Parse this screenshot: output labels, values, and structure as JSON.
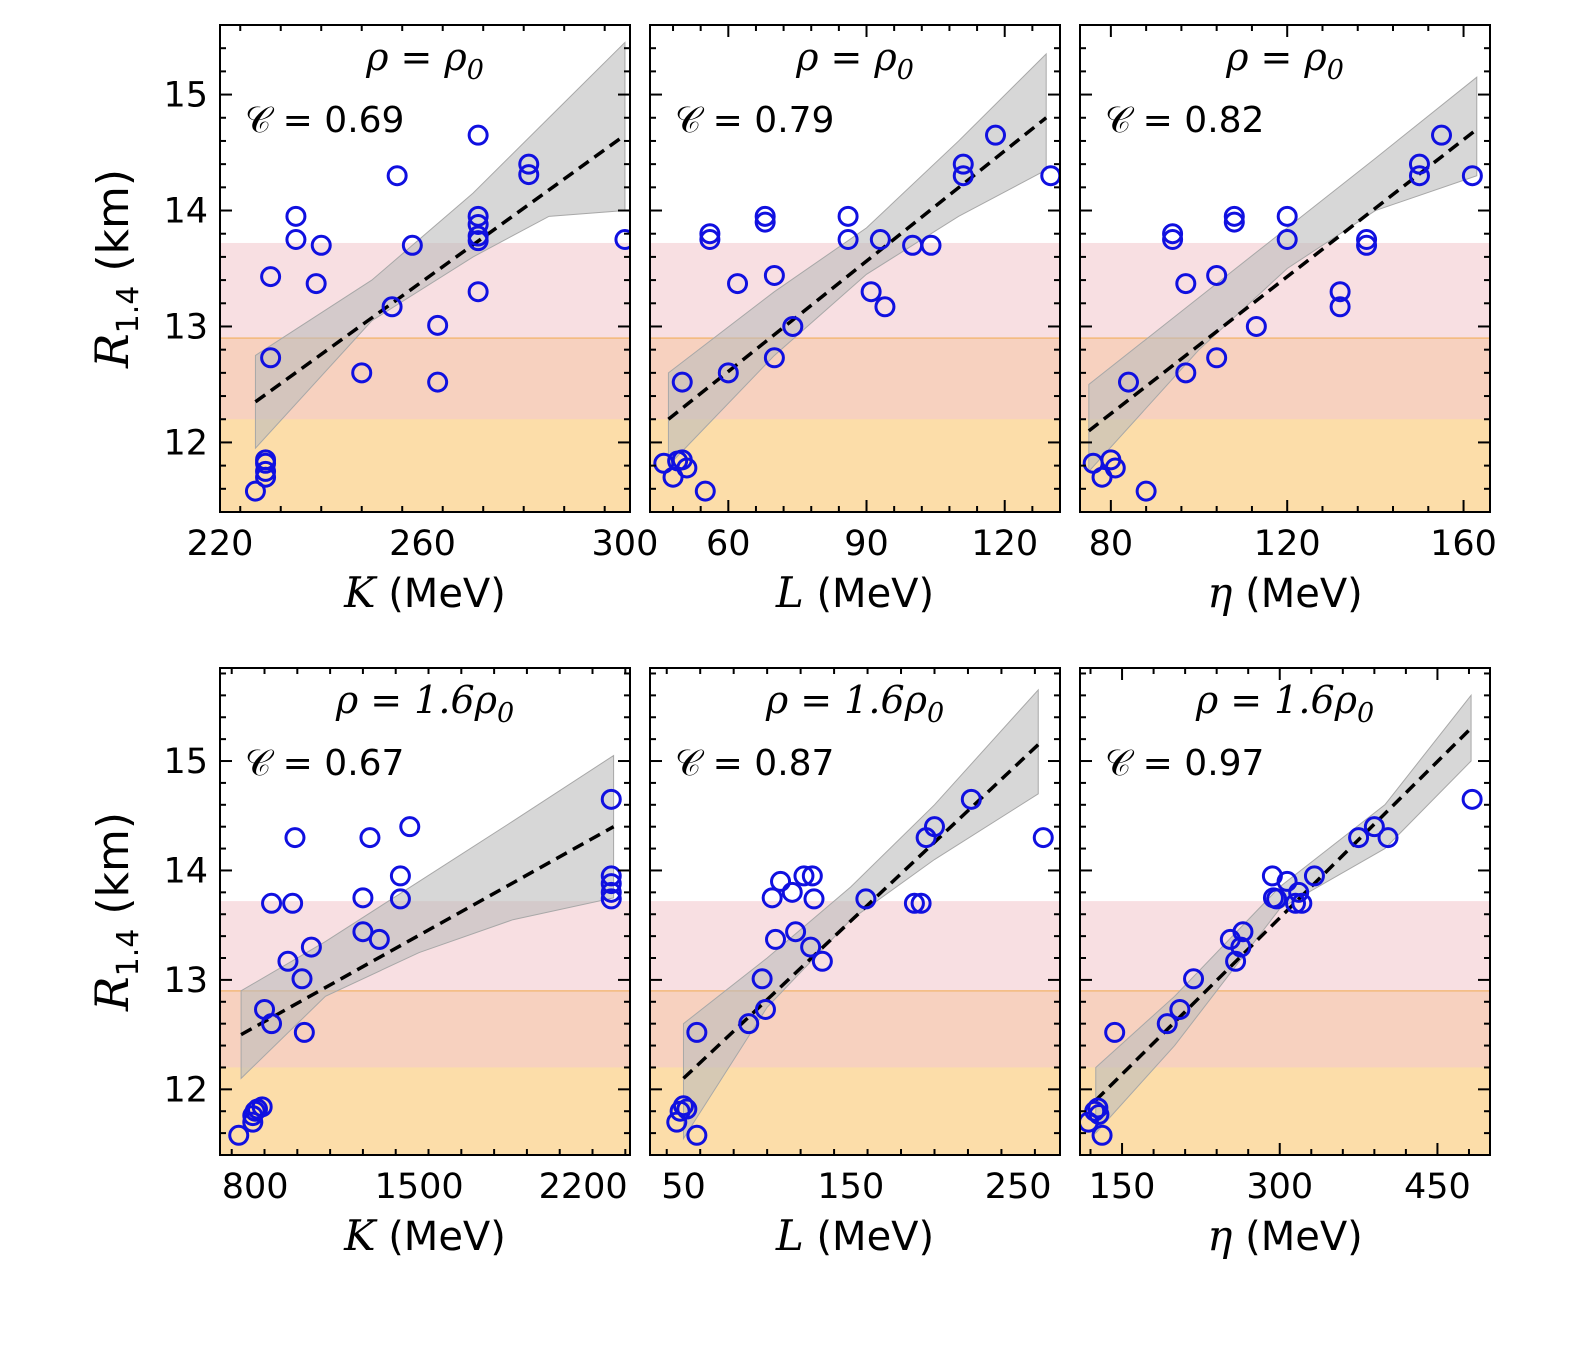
{
  "figure": {
    "row_ylabel": "(km)",
    "row_ylabel_symbol": "R",
    "row_ylabel_sub": "1.4",
    "colors": {
      "points": "#1010e0",
      "fit_line": "#000000",
      "band_gray": "#bdbdbd",
      "band_pink": "#f4c9cf",
      "band_orange": "#fbd79a"
    }
  },
  "chart_data": [
    {
      "type": "scatter",
      "panel": "top-left",
      "density_label": "ρ = ρ0",
      "corr_label": "𝒞 = 0.69",
      "xlabel_var": "K",
      "xlabel_unit": "(MeV)",
      "xlim": [
        220,
        301
      ],
      "ylim": [
        11.4,
        15.6
      ],
      "xticks": [
        220,
        260,
        300
      ],
      "yticks": [
        12,
        13,
        14,
        15
      ],
      "show_ytick_labels": true,
      "points": [
        [
          229,
          11.85
        ],
        [
          229,
          11.82
        ],
        [
          229,
          11.75
        ],
        [
          229,
          11.7
        ],
        [
          227,
          11.58
        ],
        [
          230,
          12.73
        ],
        [
          230,
          13.43
        ],
        [
          235,
          13.95
        ],
        [
          235,
          13.75
        ],
        [
          239,
          13.37
        ],
        [
          240,
          13.7
        ],
        [
          248,
          12.6
        ],
        [
          254,
          13.17
        ],
        [
          255,
          14.3
        ],
        [
          258,
          13.7
        ],
        [
          263,
          13.01
        ],
        [
          263,
          12.52
        ],
        [
          271,
          14.65
        ],
        [
          271,
          13.95
        ],
        [
          271,
          13.88
        ],
        [
          271,
          13.78
        ],
        [
          271,
          13.74
        ],
        [
          271,
          13.3
        ],
        [
          281,
          14.4
        ],
        [
          281,
          14.31
        ],
        [
          300,
          13.75
        ]
      ],
      "fit": {
        "x": [
          227,
          300
        ],
        "y": [
          12.35,
          14.65
        ]
      },
      "band_upper": [
        [
          227,
          12.75
        ],
        [
          250,
          13.4
        ],
        [
          270,
          14.15
        ],
        [
          285,
          14.8
        ],
        [
          300,
          15.45
        ]
      ],
      "band_lower": [
        [
          227,
          11.95
        ],
        [
          250,
          13.05
        ],
        [
          270,
          13.6
        ],
        [
          285,
          13.95
        ],
        [
          300,
          14.0
        ]
      ],
      "pink_band": [
        12.2,
        13.72
      ],
      "orange_band": [
        11.4,
        12.9
      ]
    },
    {
      "type": "scatter",
      "panel": "top-middle",
      "density_label": "ρ = ρ0",
      "corr_label": "𝒞 = 0.79",
      "xlabel_var": "L",
      "xlabel_unit": "(MeV)",
      "xlim": [
        43,
        132
      ],
      "ylim": [
        11.4,
        15.6
      ],
      "xticks": [
        60,
        90,
        120
      ],
      "yticks": [
        12,
        13,
        14,
        15
      ],
      "show_ytick_labels": false,
      "points": [
        [
          46,
          11.82
        ],
        [
          48,
          11.7
        ],
        [
          49,
          11.84
        ],
        [
          50,
          11.85
        ],
        [
          51,
          11.78
        ],
        [
          55,
          11.58
        ],
        [
          50,
          12.52
        ],
        [
          56,
          13.75
        ],
        [
          56,
          13.8
        ],
        [
          60,
          12.6
        ],
        [
          62,
          13.37
        ],
        [
          68,
          13.95
        ],
        [
          68,
          13.9
        ],
        [
          70,
          13.44
        ],
        [
          70,
          12.73
        ],
        [
          74,
          13.0
        ],
        [
          86,
          13.95
        ],
        [
          86,
          13.75
        ],
        [
          91,
          13.3
        ],
        [
          93,
          13.75
        ],
        [
          94,
          13.17
        ],
        [
          100,
          13.7
        ],
        [
          104,
          13.7
        ],
        [
          111,
          14.3
        ],
        [
          111,
          14.4
        ],
        [
          118,
          14.65
        ],
        [
          130,
          14.3
        ]
      ],
      "fit": {
        "x": [
          47,
          129
        ],
        "y": [
          12.2,
          14.8
        ]
      },
      "band_upper": [
        [
          47,
          12.6
        ],
        [
          70,
          13.3
        ],
        [
          90,
          13.85
        ],
        [
          110,
          14.6
        ],
        [
          129,
          15.35
        ]
      ],
      "band_lower": [
        [
          47,
          11.8
        ],
        [
          70,
          12.75
        ],
        [
          90,
          13.45
        ],
        [
          110,
          13.95
        ],
        [
          129,
          14.35
        ]
      ],
      "pink_band": [
        12.2,
        13.72
      ],
      "orange_band": [
        11.4,
        12.9
      ]
    },
    {
      "type": "scatter",
      "panel": "top-right",
      "density_label": "ρ = ρ0",
      "corr_label": "𝒞 = 0.82",
      "xlabel_var": "η",
      "xlabel_unit": "(MeV)",
      "xlim": [
        73,
        166
      ],
      "ylim": [
        11.4,
        15.6
      ],
      "xticks": [
        80,
        120,
        160
      ],
      "yticks": [
        12,
        13,
        14,
        15
      ],
      "show_ytick_labels": false,
      "points": [
        [
          76,
          11.82
        ],
        [
          78,
          11.7
        ],
        [
          80,
          11.85
        ],
        [
          81,
          11.78
        ],
        [
          88,
          11.58
        ],
        [
          84,
          12.52
        ],
        [
          94,
          13.8
        ],
        [
          94,
          13.75
        ],
        [
          97,
          12.6
        ],
        [
          97,
          13.37
        ],
        [
          104,
          12.73
        ],
        [
          104,
          13.44
        ],
        [
          108,
          13.95
        ],
        [
          108,
          13.9
        ],
        [
          113,
          13.0
        ],
        [
          120,
          13.95
        ],
        [
          120,
          13.75
        ],
        [
          132,
          13.3
        ],
        [
          132,
          13.17
        ],
        [
          138,
          13.7
        ],
        [
          138,
          13.75
        ],
        [
          150,
          14.3
        ],
        [
          150,
          14.4
        ],
        [
          155,
          14.65
        ],
        [
          162,
          14.3
        ]
      ],
      "fit": {
        "x": [
          75,
          163
        ],
        "y": [
          12.1,
          14.7
        ]
      },
      "band_upper": [
        [
          75,
          12.5
        ],
        [
          100,
          13.25
        ],
        [
          120,
          13.85
        ],
        [
          140,
          14.45
        ],
        [
          163,
          15.15
        ]
      ],
      "band_lower": [
        [
          75,
          11.75
        ],
        [
          100,
          12.8
        ],
        [
          120,
          13.5
        ],
        [
          140,
          14.0
        ],
        [
          163,
          14.3
        ]
      ],
      "pink_band": [
        12.2,
        13.72
      ],
      "orange_band": [
        11.4,
        12.9
      ]
    },
    {
      "type": "scatter",
      "panel": "bottom-left",
      "density_label": "ρ = 1.6ρ0",
      "corr_label": "𝒞 = 0.67",
      "xlabel_var": "K",
      "xlabel_unit": "(MeV)",
      "xlim": [
        650,
        2400
      ],
      "ylim": [
        11.4,
        15.85
      ],
      "xticks": [
        800,
        1500,
        2200
      ],
      "yticks": [
        12,
        13,
        14,
        15
      ],
      "show_ytick_labels": true,
      "points": [
        [
          730,
          11.58
        ],
        [
          790,
          11.7
        ],
        [
          790,
          11.76
        ],
        [
          800,
          11.8
        ],
        [
          810,
          11.82
        ],
        [
          830,
          11.84
        ],
        [
          840,
          12.73
        ],
        [
          870,
          12.6
        ],
        [
          870,
          13.7
        ],
        [
          940,
          13.17
        ],
        [
          960,
          13.7
        ],
        [
          970,
          14.3
        ],
        [
          1000,
          13.01
        ],
        [
          1010,
          12.52
        ],
        [
          1040,
          13.3
        ],
        [
          1260,
          13.75
        ],
        [
          1260,
          13.44
        ],
        [
          1290,
          14.3
        ],
        [
          1330,
          13.37
        ],
        [
          1420,
          13.95
        ],
        [
          1420,
          13.74
        ],
        [
          1460,
          14.4
        ],
        [
          2320,
          14.65
        ],
        [
          2320,
          13.95
        ],
        [
          2320,
          13.88
        ],
        [
          2320,
          13.8
        ],
        [
          2320,
          13.74
        ]
      ],
      "fit": {
        "x": [
          740,
          2330
        ],
        "y": [
          12.5,
          14.4
        ]
      },
      "band_upper": [
        [
          740,
          12.9
        ],
        [
          1100,
          13.35
        ],
        [
          1500,
          13.9
        ],
        [
          1900,
          14.45
        ],
        [
          2330,
          15.05
        ]
      ],
      "band_lower": [
        [
          740,
          12.1
        ],
        [
          1100,
          12.85
        ],
        [
          1500,
          13.25
        ],
        [
          1900,
          13.55
        ],
        [
          2330,
          13.75
        ]
      ],
      "pink_band": [
        12.2,
        13.72
      ],
      "orange_band": [
        11.4,
        12.9
      ]
    },
    {
      "type": "scatter",
      "panel": "bottom-middle",
      "density_label": "ρ = 1.6ρ0",
      "corr_label": "𝒞 = 0.87",
      "xlabel_var": "L",
      "xlabel_unit": "(MeV)",
      "xlim": [
        30,
        275
      ],
      "ylim": [
        11.4,
        15.85
      ],
      "xticks": [
        50,
        150,
        250
      ],
      "yticks": [
        12,
        13,
        14,
        15
      ],
      "show_ytick_labels": false,
      "points": [
        [
          46,
          11.7
        ],
        [
          48,
          11.8
        ],
        [
          50,
          11.85
        ],
        [
          52,
          11.82
        ],
        [
          58,
          11.58
        ],
        [
          58,
          12.52
        ],
        [
          89,
          12.6
        ],
        [
          97,
          13.01
        ],
        [
          99,
          12.73
        ],
        [
          103,
          13.75
        ],
        [
          105,
          13.37
        ],
        [
          108,
          13.9
        ],
        [
          115,
          13.8
        ],
        [
          117,
          13.44
        ],
        [
          122,
          13.95
        ],
        [
          126,
          13.3
        ],
        [
          127,
          13.95
        ],
        [
          128,
          13.74
        ],
        [
          133,
          13.17
        ],
        [
          159,
          13.74
        ],
        [
          188,
          13.7
        ],
        [
          192,
          13.7
        ],
        [
          195,
          14.3
        ],
        [
          200,
          14.4
        ],
        [
          222,
          14.65
        ],
        [
          265,
          14.3
        ]
      ],
      "fit": {
        "x": [
          50,
          262
        ],
        "y": [
          12.1,
          15.15
        ]
      },
      "band_upper": [
        [
          50,
          12.6
        ],
        [
          100,
          13.2
        ],
        [
          150,
          13.85
        ],
        [
          200,
          14.6
        ],
        [
          262,
          15.65
        ]
      ],
      "band_lower": [
        [
          50,
          11.55
        ],
        [
          100,
          12.75
        ],
        [
          150,
          13.55
        ],
        [
          200,
          14.1
        ],
        [
          262,
          14.7
        ]
      ],
      "pink_band": [
        12.2,
        13.72
      ],
      "orange_band": [
        11.4,
        12.9
      ]
    },
    {
      "type": "scatter",
      "panel": "bottom-right",
      "density_label": "ρ = 1.6ρ0",
      "corr_label": "𝒞 = 0.97",
      "xlabel_var": "η",
      "xlabel_unit": "(MeV)",
      "xlim": [
        110,
        500
      ],
      "ylim": [
        11.4,
        15.85
      ],
      "xticks": [
        150,
        300,
        450
      ],
      "yticks": [
        12,
        13,
        14,
        15
      ],
      "show_ytick_labels": false,
      "points": [
        [
          118,
          11.7
        ],
        [
          124,
          11.8
        ],
        [
          127,
          11.83
        ],
        [
          128,
          11.77
        ],
        [
          131,
          11.58
        ],
        [
          143,
          12.52
        ],
        [
          193,
          12.6
        ],
        [
          205,
          12.73
        ],
        [
          218,
          13.01
        ],
        [
          253,
          13.37
        ],
        [
          258,
          13.17
        ],
        [
          263,
          13.3
        ],
        [
          265,
          13.44
        ],
        [
          293,
          13.95
        ],
        [
          294,
          13.75
        ],
        [
          297,
          13.74
        ],
        [
          307,
          13.9
        ],
        [
          315,
          13.7
        ],
        [
          318,
          13.8
        ],
        [
          321,
          13.7
        ],
        [
          333,
          13.95
        ],
        [
          375,
          14.3
        ],
        [
          390,
          14.4
        ],
        [
          403,
          14.3
        ],
        [
          483,
          14.65
        ]
      ],
      "fit": {
        "x": [
          125,
          482
        ],
        "y": [
          11.9,
          15.3
        ]
      },
      "band_upper": [
        [
          125,
          12.2
        ],
        [
          200,
          12.85
        ],
        [
          300,
          13.85
        ],
        [
          400,
          14.6
        ],
        [
          482,
          15.6
        ]
      ],
      "band_lower": [
        [
          125,
          11.6
        ],
        [
          200,
          12.4
        ],
        [
          300,
          13.65
        ],
        [
          400,
          14.2
        ],
        [
          482,
          15.0
        ]
      ],
      "pink_band": [
        12.2,
        13.72
      ],
      "orange_band": [
        11.4,
        12.9
      ]
    }
  ]
}
